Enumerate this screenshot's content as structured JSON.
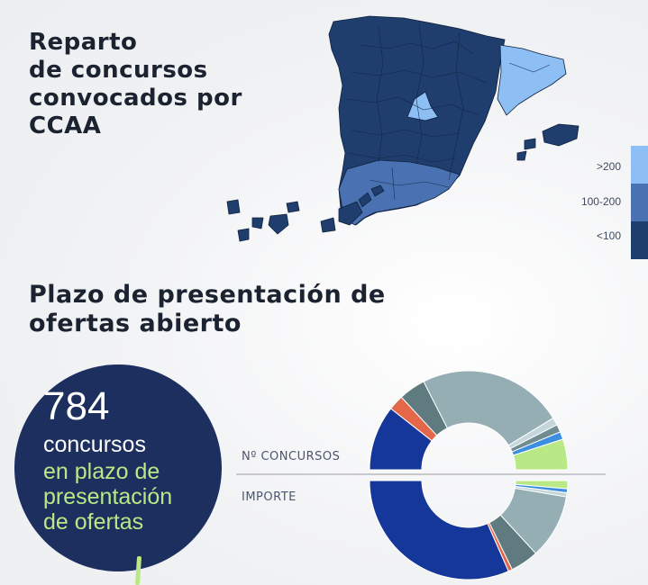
{
  "map_section": {
    "title_lines": [
      "Reparto",
      "de concursos",
      "convocados por",
      "CCAA"
    ],
    "legend": [
      {
        "label": ">200",
        "color": "#8dbff5"
      },
      {
        "label": "100-200",
        "color": "#4a72b2"
      },
      {
        "label": "<100",
        "color": "#1f3e6d"
      }
    ]
  },
  "deadline_section": {
    "title_lines": [
      "Plazo de presentación de",
      "ofertas abierto"
    ],
    "count": "784",
    "count_label": "concursos",
    "count_sub_lines": [
      "en plazo de",
      "presentación",
      "de ofertas"
    ],
    "donut_labels": {
      "top": "Nº CONCURSOS",
      "bottom": "IMPORTE"
    }
  },
  "colors": {
    "dark_navy": "#1c2f5e",
    "lime": "#b8e986",
    "slate": "#94aeb4",
    "dark_slate": "#5f7b80",
    "orange": "#e5674a",
    "royal_blue": "#15379a",
    "bright_blue": "#3c8ee0"
  },
  "chart_data": [
    {
      "type": "pie",
      "name": "",
      "segments": [
        {
          "value": 0.17,
          "color": "#15379a"
        },
        {
          "value": 0.04,
          "color": "#e5674a"
        },
        {
          "value": 0.07,
          "color": "#5f7b80"
        },
        {
          "value": 0.38,
          "color": "#94aeb4"
        },
        {
          "value": 0.02,
          "color": "#c4d6da"
        },
        {
          "value": 0.02,
          "color": "#6f8c90"
        },
        {
          "value": 0.02,
          "color": "#3c8ee0"
        },
        {
          "value": 0.08,
          "color": "#b8e986"
        }
      ]
    },
    {
      "type": "pie",
      "name": "",
      "segments": [
        {
          "value": 0.02,
          "color": "#b8e986"
        },
        {
          "value": 0.01,
          "color": "#3c8ee0"
        },
        {
          "value": 0.01,
          "color": "#c4d6da"
        },
        {
          "value": 0.16,
          "color": "#94aeb4"
        },
        {
          "value": 0.07,
          "color": "#5f7b80"
        },
        {
          "value": 0.01,
          "color": "#e5674a"
        },
        {
          "value": 0.48,
          "color": "#15379a"
        }
      ]
    }
  ]
}
